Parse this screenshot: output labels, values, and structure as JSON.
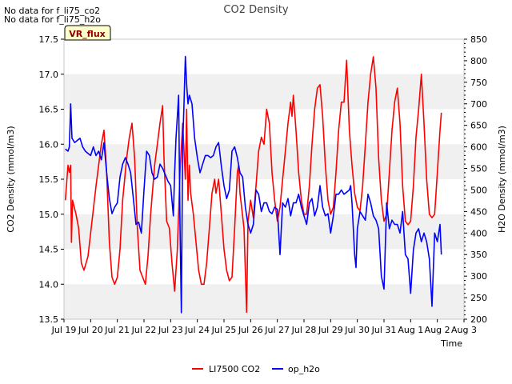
{
  "notes": [
    "No data for f_li75_co2",
    "No data for f_li75_h2o"
  ],
  "chart_data": {
    "type": "line",
    "title": "CO2 Density",
    "xlabel": "Time",
    "ylabel_left": "CO2 Density (mmol/m3)",
    "ylabel_right": "H2O Density (mmol/m3)",
    "badge": "VR_flux",
    "x_tick_labels": [
      "Jul 19",
      "Jul 20",
      "Jul 21",
      "Jul 22",
      "Jul 23",
      "Jul 24",
      "Jul 25",
      "Jul 26",
      "Jul 27",
      "Jul 28",
      "Jul 29",
      "Jul 30",
      "Jul 31",
      "Aug 1",
      "Aug 2",
      "Aug 3"
    ],
    "xlim": [
      0,
      15
    ],
    "ylim_left": [
      13.5,
      17.5
    ],
    "yticks_left": [
      "13.5",
      "14.0",
      "14.5",
      "15.0",
      "15.5",
      "16.0",
      "16.5",
      "17.0",
      "17.5"
    ],
    "ylim_right": [
      200,
      850
    ],
    "yticks_right": [
      "200",
      "250",
      "300",
      "350",
      "400",
      "450",
      "500",
      "550",
      "600",
      "650",
      "700",
      "750",
      "800",
      "850"
    ],
    "grid_bands": true,
    "legend_position": "bottom-center",
    "series": [
      {
        "name": "LI7500 CO2",
        "axis": "left",
        "color": "#ff0000",
        "points": [
          [
            0.05,
            15.2
          ],
          [
            0.15,
            15.7
          ],
          [
            0.2,
            15.6
          ],
          [
            0.25,
            15.7
          ],
          [
            0.28,
            14.6
          ],
          [
            0.32,
            15.2
          ],
          [
            0.45,
            15.0
          ],
          [
            0.55,
            14.8
          ],
          [
            0.65,
            14.3
          ],
          [
            0.75,
            14.2
          ],
          [
            0.9,
            14.4
          ],
          [
            1.05,
            14.9
          ],
          [
            1.2,
            15.4
          ],
          [
            1.3,
            15.7
          ],
          [
            1.4,
            16.0
          ],
          [
            1.5,
            16.2
          ],
          [
            1.6,
            15.6
          ],
          [
            1.7,
            14.6
          ],
          [
            1.8,
            14.1
          ],
          [
            1.9,
            14.0
          ],
          [
            2.0,
            14.1
          ],
          [
            2.1,
            14.5
          ],
          [
            2.2,
            15.2
          ],
          [
            2.35,
            15.8
          ],
          [
            2.45,
            16.1
          ],
          [
            2.55,
            16.3
          ],
          [
            2.65,
            15.8
          ],
          [
            2.75,
            14.8
          ],
          [
            2.85,
            14.2
          ],
          [
            2.95,
            14.1
          ],
          [
            3.05,
            14.0
          ],
          [
            3.15,
            14.4
          ],
          [
            3.25,
            15.0
          ],
          [
            3.4,
            15.7
          ],
          [
            3.5,
            16.0
          ],
          [
            3.6,
            16.3
          ],
          [
            3.7,
            16.55
          ],
          [
            3.75,
            15.8
          ],
          [
            3.85,
            14.9
          ],
          [
            3.95,
            14.8
          ],
          [
            4.05,
            14.3
          ],
          [
            4.15,
            13.9
          ],
          [
            4.25,
            14.5
          ],
          [
            4.35,
            15.6
          ],
          [
            4.45,
            16.3
          ],
          [
            4.55,
            15.5
          ],
          [
            4.6,
            16.5
          ],
          [
            4.65,
            15.2
          ],
          [
            4.7,
            15.7
          ],
          [
            4.75,
            15.3
          ],
          [
            4.85,
            15.0
          ],
          [
            4.95,
            14.6
          ],
          [
            5.05,
            14.2
          ],
          [
            5.15,
            14.0
          ],
          [
            5.25,
            14.0
          ],
          [
            5.35,
            14.3
          ],
          [
            5.45,
            14.8
          ],
          [
            5.55,
            15.3
          ],
          [
            5.65,
            15.5
          ],
          [
            5.7,
            15.3
          ],
          [
            5.8,
            15.5
          ],
          [
            5.9,
            15.0
          ],
          [
            6.0,
            14.5
          ],
          [
            6.1,
            14.2
          ],
          [
            6.2,
            14.05
          ],
          [
            6.3,
            14.1
          ],
          [
            6.4,
            14.8
          ],
          [
            6.5,
            15.6
          ],
          [
            6.55,
            15.7
          ],
          [
            6.6,
            15.3
          ],
          [
            6.75,
            14.8
          ],
          [
            6.85,
            13.6
          ],
          [
            6.9,
            14.9
          ],
          [
            7.0,
            15.2
          ],
          [
            7.1,
            14.95
          ],
          [
            7.2,
            15.4
          ],
          [
            7.3,
            15.9
          ],
          [
            7.4,
            16.1
          ],
          [
            7.5,
            16.0
          ],
          [
            7.6,
            16.5
          ],
          [
            7.7,
            16.3
          ],
          [
            7.8,
            15.6
          ],
          [
            7.9,
            15.2
          ],
          [
            8.0,
            14.9
          ],
          [
            8.1,
            15.1
          ],
          [
            8.2,
            15.5
          ],
          [
            8.3,
            15.9
          ],
          [
            8.4,
            16.3
          ],
          [
            8.5,
            16.6
          ],
          [
            8.55,
            16.4
          ],
          [
            8.6,
            16.7
          ],
          [
            8.7,
            16.2
          ],
          [
            8.8,
            15.6
          ],
          [
            8.9,
            15.2
          ],
          [
            9.0,
            15.0
          ],
          [
            9.1,
            15.0
          ],
          [
            9.2,
            15.4
          ],
          [
            9.3,
            16.0
          ],
          [
            9.4,
            16.5
          ],
          [
            9.5,
            16.8
          ],
          [
            9.6,
            16.85
          ],
          [
            9.7,
            16.4
          ],
          [
            9.8,
            15.7
          ],
          [
            9.9,
            15.2
          ],
          [
            10.0,
            15.0
          ],
          [
            10.1,
            15.1
          ],
          [
            10.2,
            15.6
          ],
          [
            10.3,
            16.2
          ],
          [
            10.4,
            16.6
          ],
          [
            10.5,
            16.6
          ],
          [
            10.6,
            17.2
          ],
          [
            10.7,
            16.2
          ],
          [
            10.8,
            15.7
          ],
          [
            10.9,
            15.3
          ],
          [
            11.0,
            15.1
          ],
          [
            11.1,
            15.05
          ],
          [
            11.2,
            15.4
          ],
          [
            11.3,
            16.0
          ],
          [
            11.4,
            16.6
          ],
          [
            11.5,
            17.0
          ],
          [
            11.6,
            17.25
          ],
          [
            11.7,
            16.8
          ],
          [
            11.8,
            15.8
          ],
          [
            11.9,
            15.2
          ],
          [
            12.0,
            14.9
          ],
          [
            12.1,
            15.0
          ],
          [
            12.2,
            15.6
          ],
          [
            12.3,
            16.2
          ],
          [
            12.4,
            16.6
          ],
          [
            12.5,
            16.8
          ],
          [
            12.6,
            16.3
          ],
          [
            12.7,
            15.4
          ],
          [
            12.8,
            14.9
          ],
          [
            12.9,
            14.85
          ],
          [
            13.0,
            14.9
          ],
          [
            13.1,
            15.4
          ],
          [
            13.2,
            16.1
          ],
          [
            13.3,
            16.5
          ],
          [
            13.4,
            17.0
          ],
          [
            13.5,
            16.3
          ],
          [
            13.6,
            15.5
          ],
          [
            13.7,
            15.0
          ],
          [
            13.8,
            14.95
          ],
          [
            13.9,
            15.0
          ],
          [
            14.0,
            15.6
          ],
          [
            14.1,
            16.2
          ],
          [
            14.15,
            16.45
          ]
        ]
      },
      {
        "name": "op_h2o",
        "axis": "right",
        "color": "#0000ff",
        "points": [
          [
            0.05,
            595
          ],
          [
            0.15,
            590
          ],
          [
            0.2,
            600
          ],
          [
            0.25,
            700
          ],
          [
            0.3,
            620
          ],
          [
            0.4,
            610
          ],
          [
            0.5,
            615
          ],
          [
            0.6,
            620
          ],
          [
            0.7,
            600
          ],
          [
            0.8,
            590
          ],
          [
            0.9,
            585
          ],
          [
            1.0,
            580
          ],
          [
            1.1,
            600
          ],
          [
            1.2,
            580
          ],
          [
            1.3,
            590
          ],
          [
            1.4,
            570
          ],
          [
            1.5,
            610
          ],
          [
            1.6,
            540
          ],
          [
            1.7,
            480
          ],
          [
            1.8,
            445
          ],
          [
            1.9,
            460
          ],
          [
            2.0,
            470
          ],
          [
            2.1,
            530
          ],
          [
            2.2,
            560
          ],
          [
            2.3,
            575
          ],
          [
            2.4,
            560
          ],
          [
            2.5,
            540
          ],
          [
            2.6,
            480
          ],
          [
            2.7,
            420
          ],
          [
            2.8,
            425
          ],
          [
            2.9,
            400
          ],
          [
            3.0,
            500
          ],
          [
            3.1,
            590
          ],
          [
            3.2,
            580
          ],
          [
            3.3,
            540
          ],
          [
            3.4,
            525
          ],
          [
            3.5,
            530
          ],
          [
            3.6,
            560
          ],
          [
            3.7,
            550
          ],
          [
            3.8,
            535
          ],
          [
            3.9,
            520
          ],
          [
            4.0,
            510
          ],
          [
            4.1,
            440
          ],
          [
            4.15,
            540
          ],
          [
            4.2,
            620
          ],
          [
            4.3,
            720
          ],
          [
            4.35,
            420
          ],
          [
            4.4,
            215
          ],
          [
            4.45,
            600
          ],
          [
            4.5,
            700
          ],
          [
            4.55,
            810
          ],
          [
            4.6,
            745
          ],
          [
            4.65,
            700
          ],
          [
            4.7,
            720
          ],
          [
            4.8,
            700
          ],
          [
            4.9,
            620
          ],
          [
            5.0,
            575
          ],
          [
            5.1,
            540
          ],
          [
            5.2,
            560
          ],
          [
            5.3,
            580
          ],
          [
            5.4,
            580
          ],
          [
            5.5,
            575
          ],
          [
            5.6,
            580
          ],
          [
            5.7,
            600
          ],
          [
            5.8,
            610
          ],
          [
            5.9,
            555
          ],
          [
            6.0,
            510
          ],
          [
            6.1,
            480
          ],
          [
            6.2,
            500
          ],
          [
            6.3,
            590
          ],
          [
            6.4,
            600
          ],
          [
            6.5,
            575
          ],
          [
            6.6,
            540
          ],
          [
            6.7,
            530
          ],
          [
            6.8,
            460
          ],
          [
            6.9,
            420
          ],
          [
            7.0,
            400
          ],
          [
            7.1,
            420
          ],
          [
            7.2,
            500
          ],
          [
            7.3,
            490
          ],
          [
            7.4,
            450
          ],
          [
            7.5,
            470
          ],
          [
            7.6,
            470
          ],
          [
            7.7,
            450
          ],
          [
            7.8,
            445
          ],
          [
            7.9,
            460
          ],
          [
            8.0,
            455
          ],
          [
            8.1,
            350
          ],
          [
            8.2,
            470
          ],
          [
            8.3,
            460
          ],
          [
            8.4,
            480
          ],
          [
            8.5,
            440
          ],
          [
            8.6,
            470
          ],
          [
            8.7,
            470
          ],
          [
            8.8,
            490
          ],
          [
            8.9,
            460
          ],
          [
            9.0,
            440
          ],
          [
            9.1,
            420
          ],
          [
            9.2,
            470
          ],
          [
            9.3,
            480
          ],
          [
            9.4,
            440
          ],
          [
            9.5,
            460
          ],
          [
            9.6,
            510
          ],
          [
            9.7,
            460
          ],
          [
            9.8,
            440
          ],
          [
            9.9,
            445
          ],
          [
            10.0,
            400
          ],
          [
            10.1,
            440
          ],
          [
            10.2,
            490
          ],
          [
            10.3,
            490
          ],
          [
            10.4,
            500
          ],
          [
            10.5,
            490
          ],
          [
            10.6,
            495
          ],
          [
            10.7,
            500
          ],
          [
            10.75,
            510
          ],
          [
            10.8,
            470
          ],
          [
            10.9,
            350
          ],
          [
            10.95,
            320
          ],
          [
            11.0,
            410
          ],
          [
            11.1,
            450
          ],
          [
            11.2,
            440
          ],
          [
            11.3,
            430
          ],
          [
            11.4,
            490
          ],
          [
            11.5,
            470
          ],
          [
            11.6,
            440
          ],
          [
            11.7,
            430
          ],
          [
            11.8,
            410
          ],
          [
            11.9,
            300
          ],
          [
            12.0,
            270
          ],
          [
            12.1,
            470
          ],
          [
            12.2,
            410
          ],
          [
            12.3,
            430
          ],
          [
            12.4,
            420
          ],
          [
            12.5,
            420
          ],
          [
            12.6,
            400
          ],
          [
            12.7,
            450
          ],
          [
            12.8,
            350
          ],
          [
            12.9,
            340
          ],
          [
            13.0,
            260
          ],
          [
            13.1,
            360
          ],
          [
            13.2,
            400
          ],
          [
            13.3,
            410
          ],
          [
            13.4,
            380
          ],
          [
            13.5,
            400
          ],
          [
            13.6,
            380
          ],
          [
            13.7,
            340
          ],
          [
            13.8,
            230
          ],
          [
            13.9,
            400
          ],
          [
            14.0,
            380
          ],
          [
            14.1,
            420
          ],
          [
            14.15,
            350
          ]
        ]
      }
    ]
  }
}
